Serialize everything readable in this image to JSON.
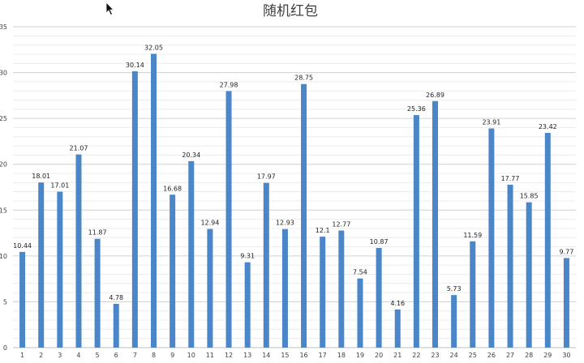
{
  "chart_data": {
    "type": "bar",
    "title": "随机红包",
    "xlabel": "",
    "ylabel": "",
    "categories": [
      "1",
      "2",
      "3",
      "4",
      "5",
      "6",
      "7",
      "8",
      "9",
      "10",
      "11",
      "12",
      "13",
      "14",
      "15",
      "16",
      "17",
      "18",
      "19",
      "20",
      "21",
      "22",
      "23",
      "24",
      "25",
      "26",
      "27",
      "28",
      "29",
      "30"
    ],
    "values": [
      10.44,
      18.01,
      17.01,
      21.07,
      11.87,
      4.78,
      30.14,
      32.05,
      16.68,
      20.34,
      12.94,
      27.98,
      9.31,
      17.97,
      12.93,
      28.75,
      12.1,
      12.77,
      7.54,
      10.87,
      4.16,
      25.36,
      26.89,
      5.73,
      11.59,
      23.91,
      17.77,
      15.85,
      23.42,
      9.77
    ],
    "data_labels": [
      "10.44",
      "18.01",
      "17.01",
      "21.07",
      "11.87",
      "4.78",
      "30.14",
      "32.05",
      "16.68",
      "20.34",
      "12.94",
      "27.98",
      "9.31",
      "17.97",
      "12.93",
      "28.75",
      "12.1",
      "12.77",
      "7.54",
      "10.87",
      "4.16",
      "25.36",
      "26.89",
      "5.73",
      "11.59",
      "23.91",
      "17.77",
      "15.85",
      "23.42",
      "9.77"
    ],
    "ylim": [
      0,
      35
    ],
    "y_ticks": [
      0,
      5,
      10,
      15,
      20,
      25,
      30,
      35
    ],
    "y_tick_labels": [
      "0",
      "5",
      "10",
      "15",
      "20",
      "25",
      "30",
      "35"
    ],
    "y_minor_step": 1,
    "grid": true,
    "legend": "none",
    "bar_color": "#4a86c8"
  },
  "cursor": {
    "icon": "mouse-pointer-icon"
  }
}
